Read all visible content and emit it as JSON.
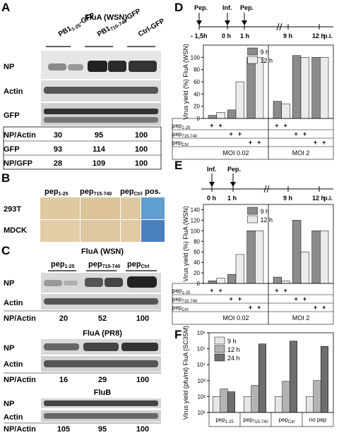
{
  "panel_letters": {
    "a": "A",
    "b": "B",
    "c": "C",
    "d": "D",
    "e": "E",
    "f": "F"
  },
  "panelA": {
    "title": "FluA (WSN)",
    "lanes": [
      "PB1",
      "1-25",
      "-GFP",
      "PB1",
      "715-740",
      "-GFP",
      "Ctrl-GFP"
    ],
    "rows": [
      "NP",
      "Actin",
      "GFP"
    ],
    "quant_labels": [
      "NP/Actin",
      "GFP",
      "NP/GFP"
    ],
    "quant_values": [
      [
        "30",
        "95",
        "100"
      ],
      [
        "93",
        "114",
        "100"
      ],
      [
        "28",
        "109",
        "100"
      ]
    ]
  },
  "panelB": {
    "cols": [
      "pep",
      "1-25",
      "pep",
      "715-740",
      "pep",
      "Ctrl",
      "pos."
    ],
    "rows": [
      "293T",
      "MDCK"
    ]
  },
  "panelC": {
    "sections": [
      {
        "title": "FluA (WSN)",
        "rows": [
          "NP",
          "Actin"
        ],
        "ratio_label": "NP/Actin",
        "values": [
          "20",
          "52",
          "100"
        ]
      },
      {
        "title": "FluA (PR8)",
        "rows": [
          "NP",
          "Actin"
        ],
        "ratio_label": "NP/Actin",
        "values": [
          "16",
          "29",
          "100"
        ]
      },
      {
        "title": "FluB",
        "rows": [
          "NP",
          "Actin"
        ],
        "ratio_label": "NP/Actin",
        "values": [
          "105",
          "95",
          "100"
        ]
      }
    ],
    "lane_headers": [
      "pep",
      "1-25",
      "pep",
      "715-740",
      "pep",
      "Ctrl"
    ]
  },
  "timeline_D": {
    "labels": [
      "Pep.",
      "Inf.",
      "Pep."
    ],
    "ticks": [
      "- 1,5h",
      "0 h",
      "1 h",
      "9 h",
      "12 h",
      "p.i."
    ]
  },
  "timeline_E": {
    "labels": [
      "Inf.",
      "Pep."
    ],
    "ticks": [
      "0 h",
      "1 h",
      "9 h",
      "12 h",
      "p.i."
    ]
  },
  "treatment_labels": {
    "p1": "pep",
    "p1s": "1-25",
    "p2": "pep",
    "p2s": "715-740",
    "p3": "pep",
    "p3s": "Ctrl",
    "plus": "+"
  },
  "moi_labels": [
    "MOI 0.02",
    "MOI 2"
  ],
  "chart_data": [
    {
      "panel": "D",
      "type": "bar",
      "ylabel": "Virus yield (%) FluA (WSN)",
      "ylim": [
        0,
        120
      ],
      "yticks": [
        "0",
        "20",
        "40",
        "60",
        "80",
        "100"
      ],
      "legend": [
        "9 h",
        "12 h"
      ],
      "groups": [
        "MOI 0.02",
        "MOI 2"
      ],
      "series": [
        {
          "name": "9 h",
          "colors": [
            "#7f7f7f"
          ],
          "values": [
            5,
            14,
            100,
            28,
            103,
            100
          ]
        },
        {
          "name": "12 h",
          "values": [
            10,
            60,
            100,
            24,
            100,
            100
          ]
        }
      ]
    },
    {
      "panel": "E",
      "type": "bar",
      "ylabel": "Virus yield (%) FluA (WSN)",
      "ylim": [
        0,
        150
      ],
      "yticks": [
        "0",
        "20",
        "40",
        "60",
        "80",
        "100",
        "120",
        "140"
      ],
      "legend": [
        "9 h",
        "12 h"
      ],
      "groups": [
        "MOI 0.02",
        "MOI 2"
      ],
      "series": [
        {
          "name": "9 h",
          "values": [
            5,
            17,
            100,
            12,
            120,
            100
          ]
        },
        {
          "name": "12 h",
          "values": [
            10,
            55,
            100,
            5,
            60,
            100
          ]
        }
      ]
    },
    {
      "panel": "F",
      "type": "bar",
      "ylabel": "Virus yield (pfu/ml) FluA (SC35M)",
      "log_scale": true,
      "ylim": [
        10,
        1000000
      ],
      "yticks": [
        "10¹",
        "10²",
        "10³",
        "10⁴",
        "10⁵",
        "10⁶"
      ],
      "legend": [
        "9 h",
        "12 h",
        "24 h"
      ],
      "categories": [
        "pep1-25",
        "pep715-740",
        "pepCtrl",
        "no pep"
      ],
      "category_labels": [
        [
          "pep",
          "1-25"
        ],
        [
          "pep",
          "715-740"
        ],
        [
          "pep",
          "Ctrl"
        ],
        [
          "no pep",
          ""
        ]
      ],
      "series": [
        {
          "name": "9 h",
          "values": [
            100,
            100,
            100,
            100
          ]
        },
        {
          "name": "12 h",
          "values": [
            300,
            500,
            900,
            1000
          ]
        },
        {
          "name": "24 h",
          "values": [
            200,
            200000,
            300000,
            140000
          ]
        }
      ]
    }
  ],
  "colors": {
    "c9": "#d9d9d9",
    "c12": "#f2f2f2",
    "c24": "#7f7f7f",
    "c9d": "#8c8c8c"
  }
}
